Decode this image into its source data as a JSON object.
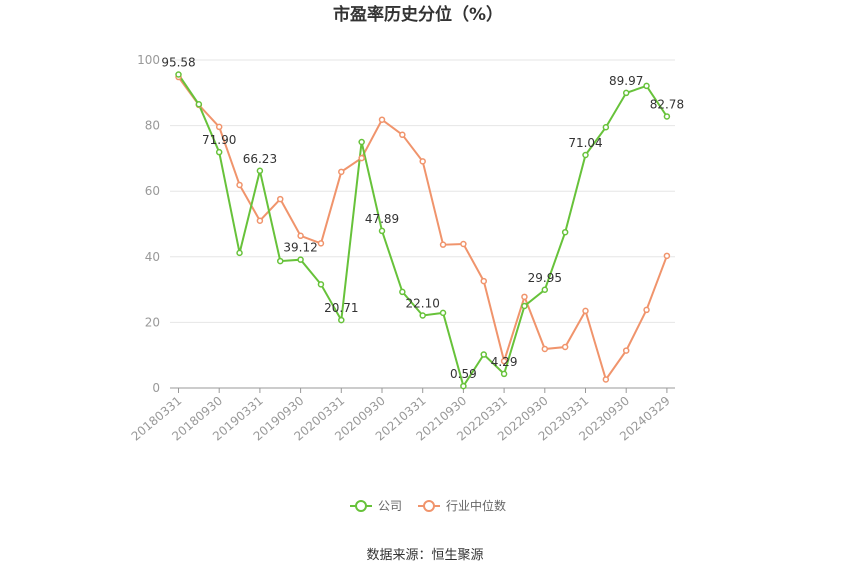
{
  "chart_data": {
    "type": "line",
    "title": "市盈率历史分位（%）",
    "xlabel": "",
    "ylabel": "",
    "ylim": [
      0,
      100
    ],
    "yticks": [
      0,
      20,
      40,
      60,
      80,
      100
    ],
    "grid": true,
    "legend_placement": "bottom",
    "x": [
      "20180331",
      "20180630",
      "20180930",
      "20181231",
      "20190331",
      "20190630",
      "20190930",
      "20191231",
      "20200331",
      "20200630",
      "20200930",
      "20201231",
      "20210331",
      "20210630",
      "20210930",
      "20211231",
      "20220331",
      "20220630",
      "20220930",
      "20221231",
      "20230331",
      "20230630",
      "20230930",
      "20231231",
      "20240329"
    ],
    "xtick_labels": [
      "20180331",
      "20180930",
      "20190331",
      "20190930",
      "20200331",
      "20200930",
      "20210331",
      "20210930",
      "20220331",
      "20220930",
      "20230331",
      "20230930",
      "20240329"
    ],
    "series": [
      {
        "name": "公司",
        "color": "#67c23a",
        "values": [
          95.58,
          86.5,
          71.9,
          41.2,
          66.23,
          38.7,
          39.12,
          31.6,
          20.71,
          75.0,
          47.89,
          29.3,
          22.1,
          22.9,
          0.59,
          10.2,
          4.29,
          25.0,
          29.95,
          47.5,
          71.04,
          79.5,
          89.97,
          92.1,
          82.78
        ]
      },
      {
        "name": "行业中位数",
        "color": "#f0946c",
        "values": [
          94.8,
          86.3,
          79.6,
          61.9,
          51.0,
          57.6,
          46.4,
          44.1,
          65.9,
          70.1,
          81.8,
          77.2,
          69.1,
          43.7,
          43.9,
          32.6,
          8.2,
          27.8,
          11.9,
          12.5,
          23.5,
          2.6,
          11.4,
          23.8,
          40.3
        ]
      }
    ],
    "data_labels": [
      {
        "series": 0,
        "index": 0,
        "text": "95.58"
      },
      {
        "series": 0,
        "index": 2,
        "text": "71.90"
      },
      {
        "series": 0,
        "index": 4,
        "text": "66.23"
      },
      {
        "series": 0,
        "index": 6,
        "text": "39.12"
      },
      {
        "series": 0,
        "index": 8,
        "text": "20.71"
      },
      {
        "series": 0,
        "index": 10,
        "text": "47.89"
      },
      {
        "series": 0,
        "index": 12,
        "text": "22.10"
      },
      {
        "series": 0,
        "index": 14,
        "text": "0.59"
      },
      {
        "series": 0,
        "index": 16,
        "text": "4.29"
      },
      {
        "series": 0,
        "index": 18,
        "text": "29.95"
      },
      {
        "series": 0,
        "index": 20,
        "text": "71.04"
      },
      {
        "series": 0,
        "index": 22,
        "text": "89.97"
      },
      {
        "series": 0,
        "index": 24,
        "text": "82.78"
      }
    ]
  },
  "source": "数据来源：恒生聚源"
}
